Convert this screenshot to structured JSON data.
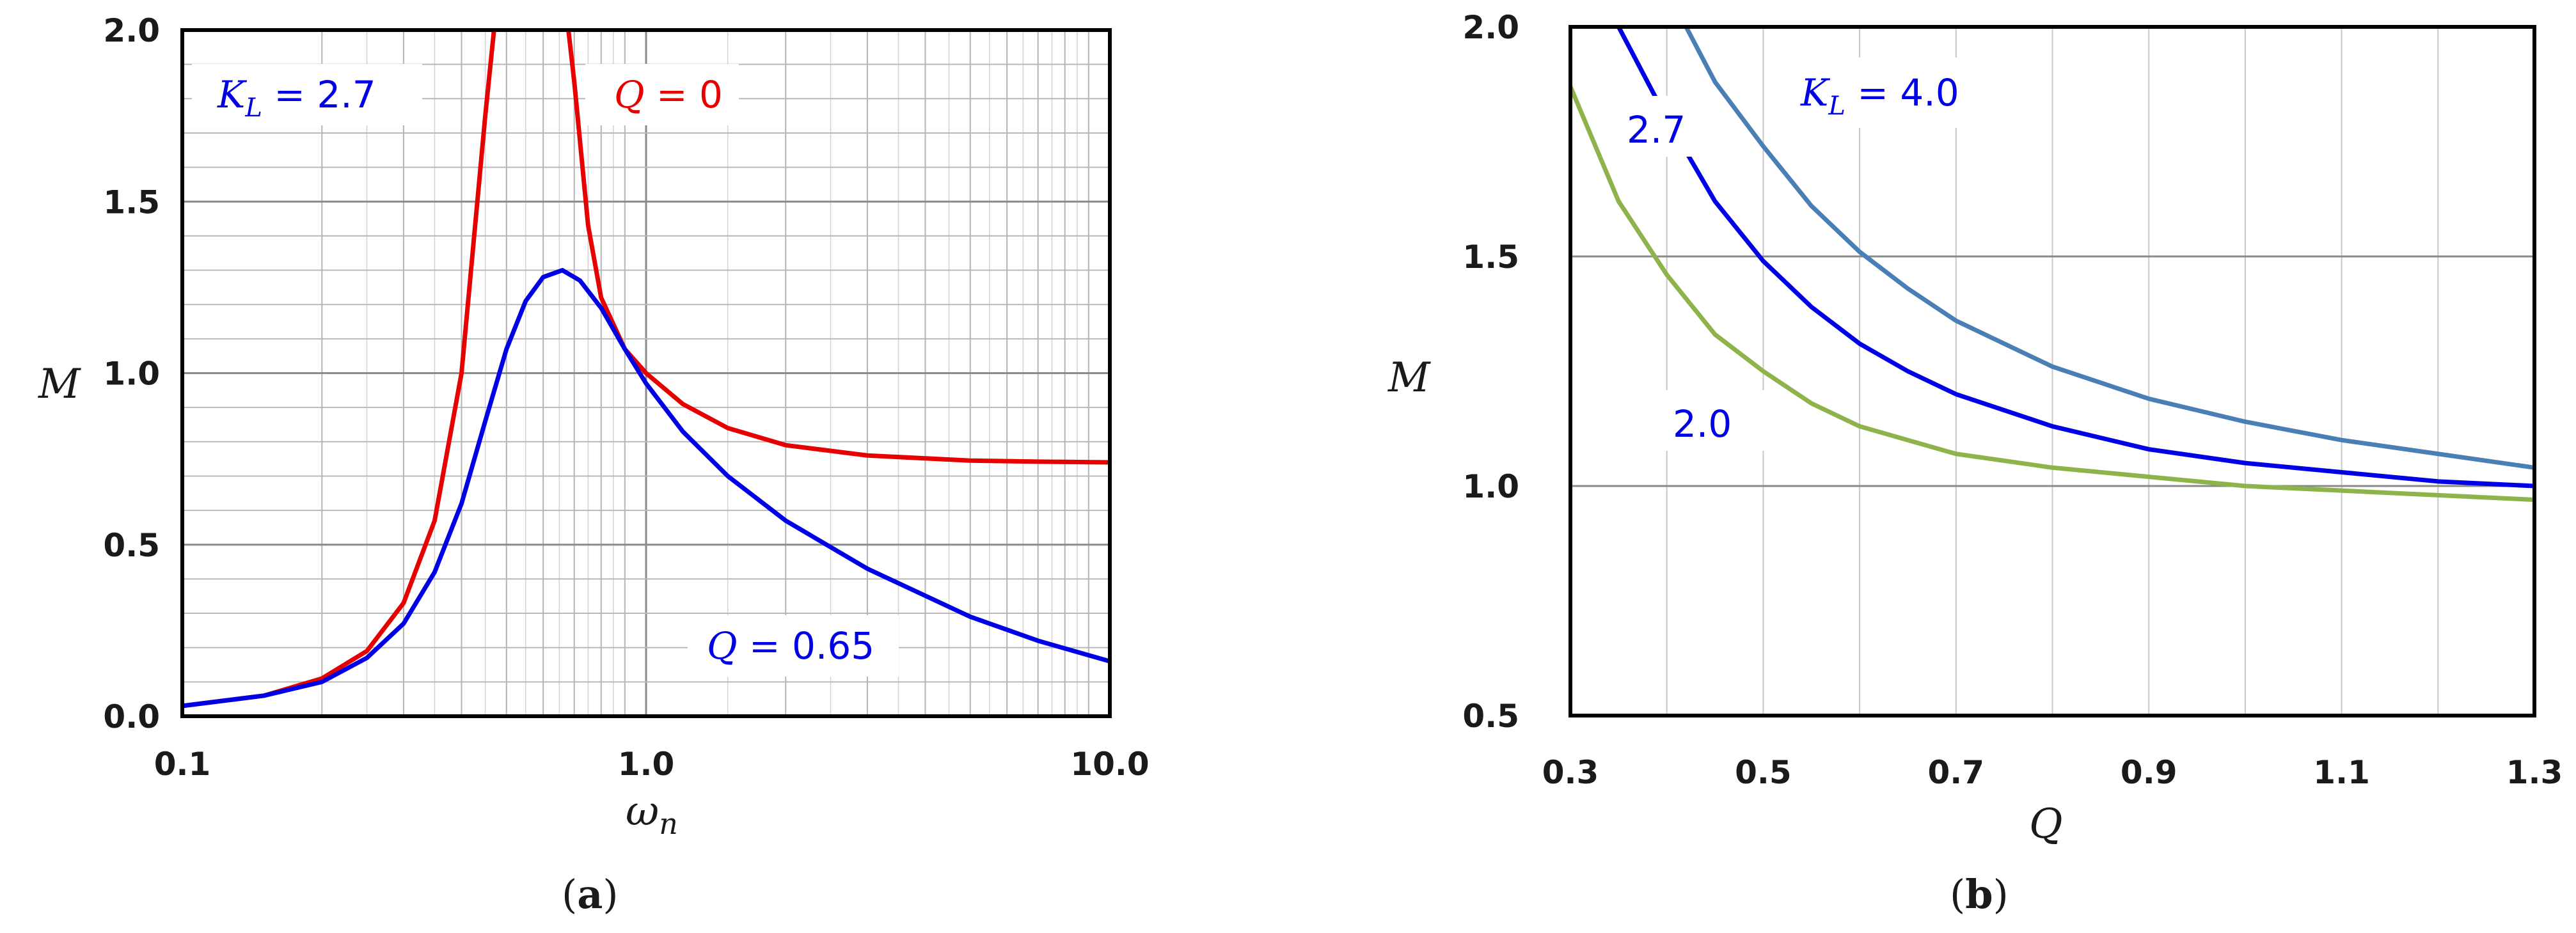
{
  "chart_data": [
    {
      "type": "line",
      "panel_label": "(a)",
      "xlabel": "ωn",
      "ylabel": "M",
      "xscale": "log",
      "xlim": [
        0.1,
        10.0
      ],
      "ylim": [
        0.0,
        2.0
      ],
      "xticks": [
        "0.1",
        "1.0",
        "10.0"
      ],
      "yticks": [
        "0.0",
        "0.5",
        "1.0",
        "1.5",
        "2.0"
      ],
      "grid": "log minor + major",
      "annotations": [
        {
          "text": "KL = 2.7",
          "color": "#0000e6"
        },
        {
          "text": "Q = 0",
          "color": "#e60000"
        },
        {
          "text": "Q = 0.65",
          "color": "#0000e6"
        }
      ],
      "series": [
        {
          "name": "Q = 0",
          "color": "#e60000",
          "x": [
            0.1,
            0.15,
            0.2,
            0.25,
            0.3,
            0.35,
            0.4,
            0.45,
            0.47,
            0.48,
            0.68,
            0.7,
            0.75,
            0.8,
            0.9,
            1.0,
            1.2,
            1.5,
            2.0,
            3.0,
            5.0,
            7.0,
            10.0
          ],
          "values": [
            0.03,
            0.06,
            0.11,
            0.19,
            0.33,
            0.57,
            1.0,
            1.75,
            2.0,
            2.0,
            2.0,
            1.85,
            1.43,
            1.22,
            1.07,
            1.0,
            0.91,
            0.84,
            0.79,
            0.76,
            0.745,
            0.742,
            0.74
          ]
        },
        {
          "name": "Q = 0.65",
          "color": "#0000e6",
          "x": [
            0.1,
            0.15,
            0.2,
            0.25,
            0.3,
            0.35,
            0.4,
            0.45,
            0.5,
            0.55,
            0.6,
            0.66,
            0.72,
            0.8,
            0.9,
            1.0,
            1.2,
            1.5,
            2.0,
            3.0,
            5.0,
            7.0,
            10.0
          ],
          "values": [
            0.03,
            0.06,
            0.1,
            0.17,
            0.27,
            0.42,
            0.62,
            0.86,
            1.07,
            1.21,
            1.28,
            1.3,
            1.27,
            1.19,
            1.07,
            0.97,
            0.83,
            0.7,
            0.57,
            0.43,
            0.29,
            0.22,
            0.16
          ]
        }
      ]
    },
    {
      "type": "line",
      "panel_label": "(b)",
      "xlabel": "Q",
      "ylabel": "M",
      "xlim": [
        0.3,
        1.3
      ],
      "ylim": [
        0.5,
        2.0
      ],
      "xticks": [
        "0.3",
        "0.5",
        "0.7",
        "0.9",
        "1.1",
        "1.3"
      ],
      "yticks": [
        "0.5",
        "1.0",
        "1.5",
        "2.0"
      ],
      "grid": "major",
      "annotations": [
        {
          "text": "KL = 4.0",
          "color": "#0000e6"
        },
        {
          "text": "2.7",
          "color": "#0000e6"
        },
        {
          "text": "2.0",
          "color": "#0000e6"
        }
      ],
      "series": [
        {
          "name": "KL = 4.0",
          "color": "#4a7fb5",
          "x": [
            0.42,
            0.45,
            0.5,
            0.55,
            0.6,
            0.65,
            0.7,
            0.8,
            0.9,
            1.0,
            1.1,
            1.2,
            1.3
          ],
          "values": [
            2.0,
            1.88,
            1.74,
            1.61,
            1.51,
            1.43,
            1.36,
            1.26,
            1.19,
            1.14,
            1.1,
            1.07,
            1.04
          ]
        },
        {
          "name": "2.7",
          "color": "#0000e6",
          "x": [
            0.35,
            0.4,
            0.45,
            0.5,
            0.55,
            0.6,
            0.65,
            0.7,
            0.8,
            0.9,
            1.0,
            1.1,
            1.2,
            1.3
          ],
          "values": [
            2.0,
            1.8,
            1.62,
            1.49,
            1.39,
            1.31,
            1.25,
            1.2,
            1.13,
            1.08,
            1.05,
            1.03,
            1.01,
            1.0
          ]
        },
        {
          "name": "2.0",
          "color": "#8db34a",
          "x": [
            0.3,
            0.35,
            0.4,
            0.45,
            0.5,
            0.55,
            0.6,
            0.65,
            0.7,
            0.8,
            0.9,
            1.0,
            1.1,
            1.2,
            1.3
          ],
          "values": [
            1.87,
            1.62,
            1.46,
            1.33,
            1.25,
            1.18,
            1.13,
            1.1,
            1.07,
            1.04,
            1.02,
            1.0,
            0.99,
            0.98,
            0.97
          ]
        }
      ]
    }
  ]
}
